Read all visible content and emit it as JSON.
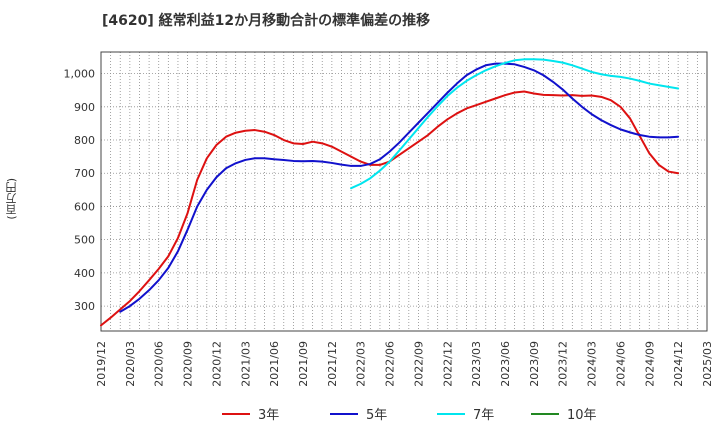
{
  "title": "[4620]  経常利益12か月移動合計の標準偏差の推移",
  "ylabel": "(百万円)",
  "chart_data": {
    "type": "line",
    "title": "[4620]  経常利益12か月移動合計の標準偏差の推移",
    "ylabel": "(百万円)",
    "xlabel": "",
    "ylim": [
      225,
      1065
    ],
    "yticks": [
      300,
      400,
      500,
      600,
      700,
      800,
      900,
      1000
    ],
    "yticklabels": [
      "300",
      "400",
      "500",
      "600",
      "700",
      "800",
      "900",
      "1,000"
    ],
    "xticks": [
      "2019/12",
      "2020/03",
      "2020/06",
      "2020/09",
      "2020/12",
      "2021/03",
      "2021/06",
      "2021/09",
      "2021/12",
      "2022/03",
      "2022/06",
      "2022/09",
      "2022/12",
      "2023/03",
      "2023/06",
      "2023/09",
      "2023/12",
      "2024/03",
      "2024/06",
      "2024/09",
      "2024/12",
      "2025/03"
    ],
    "grid": true,
    "legend_position": "bottom",
    "series": [
      {
        "name": "3年",
        "color": "#dd1111",
        "x": [
          "2019/12",
          "2020/01",
          "2020/02",
          "2020/03",
          "2020/04",
          "2020/05",
          "2020/06",
          "2020/07",
          "2020/08",
          "2020/09",
          "2020/10",
          "2020/11",
          "2020/12",
          "2021/01",
          "2021/02",
          "2021/03",
          "2021/04",
          "2021/05",
          "2021/06",
          "2021/07",
          "2021/08",
          "2021/09",
          "2021/10",
          "2021/11",
          "2021/12",
          "2022/01",
          "2022/02",
          "2022/03",
          "2022/04",
          "2022/05",
          "2022/06",
          "2022/07",
          "2022/08",
          "2022/09",
          "2022/10",
          "2022/11",
          "2022/12",
          "2023/01",
          "2023/02",
          "2023/03",
          "2023/04",
          "2023/05",
          "2023/06",
          "2023/07",
          "2023/08",
          "2023/09",
          "2023/10",
          "2023/11",
          "2023/12",
          "2024/01",
          "2024/02",
          "2024/03",
          "2024/04",
          "2024/05",
          "2024/06",
          "2024/07",
          "2024/08",
          "2024/09",
          "2024/10",
          "2024/11",
          "2024/12"
        ],
        "values": [
          242,
          265,
          290,
          315,
          345,
          378,
          412,
          450,
          505,
          580,
          680,
          745,
          785,
          810,
          822,
          828,
          830,
          825,
          815,
          800,
          790,
          788,
          795,
          790,
          780,
          765,
          750,
          735,
          725,
          725,
          735,
          755,
          775,
          795,
          815,
          840,
          862,
          880,
          895,
          905,
          915,
          925,
          935,
          943,
          946,
          940,
          936,
          935,
          934,
          935,
          933,
          934,
          930,
          920,
          900,
          865,
          812,
          760,
          725,
          705,
          700
        ]
      },
      {
        "name": "5年",
        "color": "#1111cc",
        "x": [
          "2020/02",
          "2020/03",
          "2020/04",
          "2020/05",
          "2020/06",
          "2020/07",
          "2020/08",
          "2020/09",
          "2020/10",
          "2020/11",
          "2020/12",
          "2021/01",
          "2021/02",
          "2021/03",
          "2021/04",
          "2021/05",
          "2021/06",
          "2021/07",
          "2021/08",
          "2021/09",
          "2021/10",
          "2021/11",
          "2021/12",
          "2022/01",
          "2022/02",
          "2022/03",
          "2022/04",
          "2022/05",
          "2022/06",
          "2022/07",
          "2022/08",
          "2022/09",
          "2022/10",
          "2022/11",
          "2022/12",
          "2023/01",
          "2023/02",
          "2023/03",
          "2023/04",
          "2023/05",
          "2023/06",
          "2023/07",
          "2023/08",
          "2023/09",
          "2023/10",
          "2023/11",
          "2023/12",
          "2024/01",
          "2024/02",
          "2024/03",
          "2024/04",
          "2024/05",
          "2024/06",
          "2024/07",
          "2024/08",
          "2024/09",
          "2024/10",
          "2024/11",
          "2024/12"
        ],
        "values": [
          283,
          300,
          322,
          348,
          378,
          415,
          465,
          530,
          600,
          650,
          688,
          715,
          730,
          740,
          745,
          745,
          742,
          740,
          737,
          736,
          737,
          735,
          731,
          726,
          722,
          722,
          728,
          742,
          765,
          792,
          822,
          852,
          882,
          912,
          942,
          970,
          995,
          1012,
          1025,
          1030,
          1030,
          1028,
          1020,
          1010,
          995,
          975,
          952,
          925,
          900,
          878,
          860,
          845,
          832,
          823,
          815,
          810,
          808,
          808,
          810
        ]
      },
      {
        "name": "7年",
        "color": "#00e5ee",
        "x": [
          "2022/02",
          "2022/03",
          "2022/04",
          "2022/05",
          "2022/06",
          "2022/07",
          "2022/08",
          "2022/09",
          "2022/10",
          "2022/11",
          "2022/12",
          "2023/01",
          "2023/02",
          "2023/03",
          "2023/04",
          "2023/05",
          "2023/06",
          "2023/07",
          "2023/08",
          "2023/09",
          "2023/10",
          "2023/11",
          "2023/12",
          "2024/01",
          "2024/02",
          "2024/03",
          "2024/04",
          "2024/05",
          "2024/06",
          "2024/07",
          "2024/08",
          "2024/09",
          "2024/10",
          "2024/11",
          "2024/12"
        ],
        "values": [
          655,
          668,
          685,
          708,
          735,
          768,
          802,
          836,
          870,
          902,
          932,
          957,
          978,
          995,
          1010,
          1022,
          1032,
          1040,
          1043,
          1043,
          1042,
          1038,
          1033,
          1025,
          1015,
          1005,
          998,
          993,
          990,
          985,
          978,
          970,
          965,
          960,
          955
        ]
      },
      {
        "name": "10年",
        "color": "#228822",
        "x": [],
        "values": []
      }
    ]
  }
}
